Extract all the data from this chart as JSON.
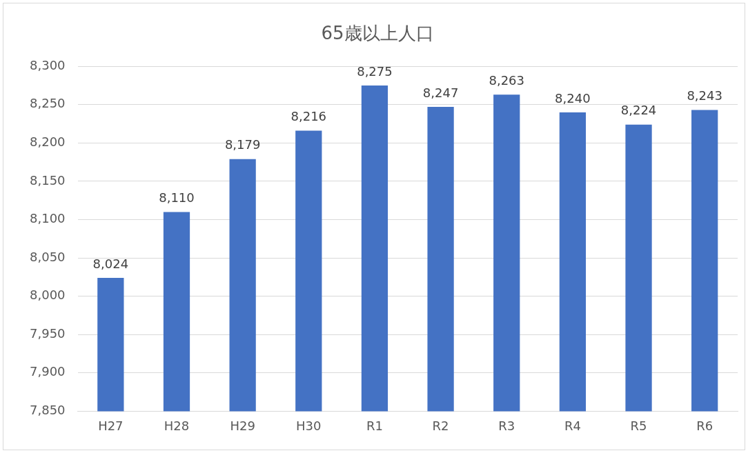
{
  "chart_data": {
    "type": "bar",
    "title": "65歳以上人口",
    "categories": [
      "H27",
      "H28",
      "H29",
      "H30",
      "R1",
      "R2",
      "R3",
      "R4",
      "R5",
      "R6"
    ],
    "values": [
      8024,
      8110,
      8179,
      8216,
      8275,
      8247,
      8263,
      8240,
      8224,
      8243
    ],
    "value_labels": [
      "8,024",
      "8,110",
      "8,179",
      "8,216",
      "8,275",
      "8,247",
      "8,263",
      "8,240",
      "8,224",
      "8,243"
    ],
    "color": "#4472c4",
    "ylim": [
      7850,
      8300
    ],
    "yticks": [
      {
        "value": 7850,
        "label": "7,850"
      },
      {
        "value": 7900,
        "label": "7,900"
      },
      {
        "value": 7950,
        "label": "7,950"
      },
      {
        "value": 8000,
        "label": "8,000"
      },
      {
        "value": 8050,
        "label": "8,050"
      },
      {
        "value": 8100,
        "label": "8,100"
      },
      {
        "value": 8150,
        "label": "8,150"
      },
      {
        "value": 8200,
        "label": "8,200"
      },
      {
        "value": 8250,
        "label": "8,250"
      },
      {
        "value": 8300,
        "label": "8,300"
      }
    ],
    "grid": "y",
    "legend": false
  }
}
